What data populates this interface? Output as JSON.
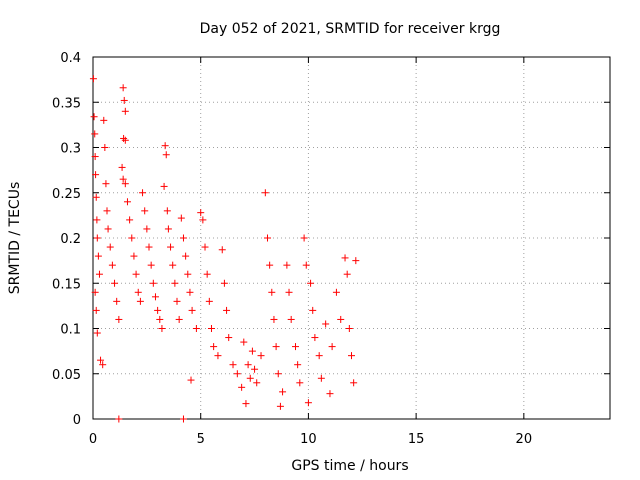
{
  "chart_data": {
    "type": "scatter",
    "title": "Day 052 of 2021, SRMTID for receiver krgg",
    "xlabel": "GPS time / hours",
    "ylabel": "SRMTID / TECUs",
    "xlim": [
      0,
      24
    ],
    "ylim": [
      0,
      0.4
    ],
    "x_ticks": [
      0,
      5,
      10,
      15,
      20
    ],
    "x_tick_labels": [
      "0",
      "5",
      "10",
      "15",
      "20"
    ],
    "y_ticks": [
      0,
      0.05,
      0.1,
      0.15,
      0.2,
      0.25,
      0.3,
      0.35,
      0.4
    ],
    "y_tick_labels": [
      "0",
      "0.05",
      "0.1",
      "0.15",
      "0.2",
      "0.25",
      "0.3",
      "0.35",
      "0.4"
    ],
    "grid": true,
    "marker": "+",
    "color": "#ff0000",
    "series": [
      {
        "name": "SRMTID",
        "points": [
          [
            0.02,
            0.376
          ],
          [
            0.05,
            0.334
          ],
          [
            0.08,
            0.315
          ],
          [
            0.1,
            0.29
          ],
          [
            0.12,
            0.27
          ],
          [
            0.15,
            0.245
          ],
          [
            0.18,
            0.22
          ],
          [
            0.2,
            0.2
          ],
          [
            0.25,
            0.18
          ],
          [
            0.3,
            0.16
          ],
          [
            0.1,
            0.14
          ],
          [
            0.15,
            0.12
          ],
          [
            0.2,
            0.095
          ],
          [
            0.35,
            0.065
          ],
          [
            0.45,
            0.06
          ],
          [
            0.5,
            0.33
          ],
          [
            0.55,
            0.3
          ],
          [
            0.6,
            0.26
          ],
          [
            0.65,
            0.23
          ],
          [
            0.7,
            0.21
          ],
          [
            0.8,
            0.19
          ],
          [
            0.9,
            0.17
          ],
          [
            1.0,
            0.15
          ],
          [
            1.1,
            0.13
          ],
          [
            1.2,
            0.11
          ],
          [
            1.4,
            0.366
          ],
          [
            1.45,
            0.352
          ],
          [
            1.5,
            0.34
          ],
          [
            1.42,
            0.31
          ],
          [
            1.5,
            0.308
          ],
          [
            1.35,
            0.278
          ],
          [
            1.4,
            0.265
          ],
          [
            1.5,
            0.26
          ],
          [
            1.6,
            0.24
          ],
          [
            1.7,
            0.22
          ],
          [
            1.8,
            0.2
          ],
          [
            1.9,
            0.18
          ],
          [
            2.0,
            0.16
          ],
          [
            2.1,
            0.14
          ],
          [
            2.2,
            0.13
          ],
          [
            2.3,
            0.25
          ],
          [
            2.4,
            0.23
          ],
          [
            2.5,
            0.21
          ],
          [
            2.6,
            0.19
          ],
          [
            2.7,
            0.17
          ],
          [
            2.8,
            0.15
          ],
          [
            2.9,
            0.135
          ],
          [
            3.0,
            0.12
          ],
          [
            3.1,
            0.11
          ],
          [
            3.2,
            0.1
          ],
          [
            3.35,
            0.302
          ],
          [
            3.4,
            0.292
          ],
          [
            3.3,
            0.257
          ],
          [
            3.45,
            0.23
          ],
          [
            3.5,
            0.21
          ],
          [
            3.6,
            0.19
          ],
          [
            3.7,
            0.17
          ],
          [
            3.8,
            0.15
          ],
          [
            3.9,
            0.13
          ],
          [
            4.0,
            0.11
          ],
          [
            4.1,
            0.222
          ],
          [
            4.2,
            0.2
          ],
          [
            4.3,
            0.18
          ],
          [
            4.4,
            0.16
          ],
          [
            4.5,
            0.14
          ],
          [
            4.55,
            0.043
          ],
          [
            4.6,
            0.12
          ],
          [
            4.8,
            0.1
          ],
          [
            5.0,
            0.228
          ],
          [
            5.1,
            0.22
          ],
          [
            5.2,
            0.19
          ],
          [
            5.3,
            0.16
          ],
          [
            5.4,
            0.13
          ],
          [
            5.5,
            0.1
          ],
          [
            5.6,
            0.08
          ],
          [
            5.8,
            0.07
          ],
          [
            6.0,
            0.187
          ],
          [
            6.1,
            0.15
          ],
          [
            6.2,
            0.12
          ],
          [
            6.3,
            0.09
          ],
          [
            6.5,
            0.06
          ],
          [
            6.7,
            0.05
          ],
          [
            6.9,
            0.035
          ],
          [
            7.0,
            0.085
          ],
          [
            7.1,
            0.017
          ],
          [
            7.2,
            0.06
          ],
          [
            7.3,
            0.045
          ],
          [
            7.4,
            0.075
          ],
          [
            7.5,
            0.055
          ],
          [
            7.6,
            0.04
          ],
          [
            7.8,
            0.07
          ],
          [
            8.0,
            0.25
          ],
          [
            8.1,
            0.2
          ],
          [
            8.2,
            0.17
          ],
          [
            8.3,
            0.14
          ],
          [
            8.4,
            0.11
          ],
          [
            8.5,
            0.08
          ],
          [
            8.6,
            0.05
          ],
          [
            8.7,
            0.014
          ],
          [
            8.8,
            0.03
          ],
          [
            9.0,
            0.17
          ],
          [
            9.1,
            0.14
          ],
          [
            9.2,
            0.11
          ],
          [
            9.4,
            0.08
          ],
          [
            9.5,
            0.06
          ],
          [
            9.6,
            0.04
          ],
          [
            9.8,
            0.2
          ],
          [
            9.9,
            0.17
          ],
          [
            10.0,
            0.018
          ],
          [
            10.1,
            0.15
          ],
          [
            10.2,
            0.12
          ],
          [
            10.3,
            0.09
          ],
          [
            10.5,
            0.07
          ],
          [
            10.6,
            0.045
          ],
          [
            10.8,
            0.105
          ],
          [
            11.0,
            0.028
          ],
          [
            11.1,
            0.08
          ],
          [
            11.3,
            0.14
          ],
          [
            11.5,
            0.11
          ],
          [
            11.7,
            0.178
          ],
          [
            11.8,
            0.16
          ],
          [
            11.9,
            0.1
          ],
          [
            12.0,
            0.07
          ],
          [
            12.1,
            0.04
          ],
          [
            12.2,
            0.175
          ],
          [
            1.2,
            0.0
          ],
          [
            4.2,
            0.0
          ]
        ]
      }
    ]
  }
}
